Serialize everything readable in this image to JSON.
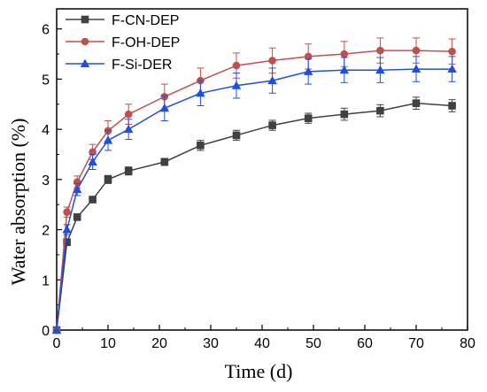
{
  "chart_data": {
    "type": "line",
    "title": "",
    "xlabel": "Time (d)",
    "ylabel": "Water absorption (%)",
    "xlim": [
      0,
      80
    ],
    "ylim": [
      0,
      6.4
    ],
    "xticks": [
      0,
      10,
      20,
      30,
      40,
      50,
      60,
      70,
      80
    ],
    "yticks": [
      0,
      1,
      2,
      3,
      4,
      5,
      6
    ],
    "legend_position": "top-left",
    "grid": false,
    "x": [
      0,
      2,
      4,
      7,
      10,
      14,
      21,
      28,
      35,
      42,
      49,
      56,
      63,
      70,
      77
    ],
    "series": [
      {
        "name": "F-CN-DEP",
        "color": "#404040",
        "marker": "square",
        "values": [
          0,
          1.75,
          2.25,
          2.6,
          3.0,
          3.17,
          3.35,
          3.68,
          3.88,
          4.08,
          4.22,
          4.3,
          4.37,
          4.52,
          4.47
        ],
        "errors": [
          0,
          0.05,
          0.05,
          0.06,
          0.08,
          0.08,
          0.07,
          0.1,
          0.1,
          0.1,
          0.1,
          0.12,
          0.12,
          0.12,
          0.12
        ]
      },
      {
        "name": "F-OH-DEP",
        "color": "#c0504d",
        "marker": "circle",
        "values": [
          0,
          2.35,
          2.95,
          3.55,
          3.97,
          4.3,
          4.65,
          4.97,
          5.27,
          5.37,
          5.45,
          5.5,
          5.57,
          5.57,
          5.55
        ],
        "errors": [
          0,
          0.1,
          0.12,
          0.15,
          0.2,
          0.2,
          0.25,
          0.25,
          0.25,
          0.25,
          0.25,
          0.25,
          0.25,
          0.25,
          0.25
        ]
      },
      {
        "name": "F-Si-DER",
        "color": "#1f4fe0",
        "marker": "triangle",
        "values": [
          0,
          2.0,
          2.8,
          3.35,
          3.78,
          4.0,
          4.42,
          4.72,
          4.87,
          4.97,
          5.15,
          5.18,
          5.18,
          5.2,
          5.2
        ],
        "errors": [
          0,
          0.1,
          0.12,
          0.15,
          0.2,
          0.2,
          0.25,
          0.25,
          0.25,
          0.25,
          0.25,
          0.25,
          0.25,
          0.25,
          0.25
        ]
      }
    ]
  }
}
